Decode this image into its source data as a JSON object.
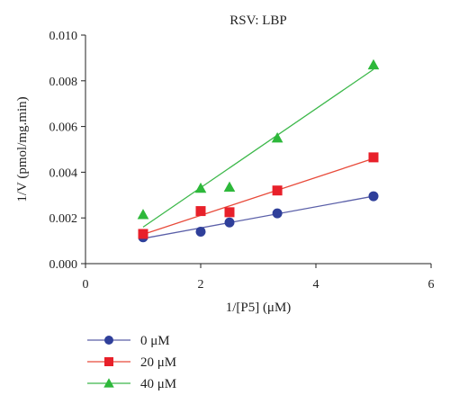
{
  "chart_data": {
    "type": "scatter",
    "title": "RSV: LBP",
    "xlabel": "1/[P5] (μM)",
    "ylabel": "1/V (pmol/mg.min)",
    "xlim": [
      0,
      6
    ],
    "ylim": [
      0,
      0.01
    ],
    "x_ticks": [
      "0",
      "2",
      "4",
      "6"
    ],
    "y_ticks": [
      "0.000",
      "0.002",
      "0.004",
      "0.006",
      "0.008",
      "0.010"
    ],
    "grid": false,
    "legend_position": "bottom-left",
    "series": [
      {
        "name": "0 μM",
        "marker": "circle",
        "color": "#2f3f9a",
        "line_color": "#5a5fa8",
        "x": [
          1,
          2,
          2.5,
          3.33,
          5
        ],
        "y": [
          0.00115,
          0.0014,
          0.0018,
          0.0022,
          0.00295
        ],
        "fit": [
          [
            1,
            0.0011
          ],
          [
            5,
            0.00295
          ]
        ]
      },
      {
        "name": "20 μM",
        "marker": "square",
        "color": "#e8202a",
        "line_color": "#e84a3a",
        "x": [
          1,
          2,
          2.5,
          3.33,
          5
        ],
        "y": [
          0.0013,
          0.0023,
          0.00225,
          0.0032,
          0.00465
        ],
        "fit": [
          [
            1,
            0.00128
          ],
          [
            5,
            0.0046
          ]
        ]
      },
      {
        "name": "40 μM",
        "marker": "triangle",
        "color": "#2db83a",
        "line_color": "#3cb84a",
        "x": [
          1,
          2,
          2.5,
          3.33,
          5
        ],
        "y": [
          0.00215,
          0.0033,
          0.00335,
          0.0055,
          0.0087
        ],
        "fit": [
          [
            1,
            0.0016
          ],
          [
            5,
            0.0085
          ]
        ]
      }
    ]
  }
}
